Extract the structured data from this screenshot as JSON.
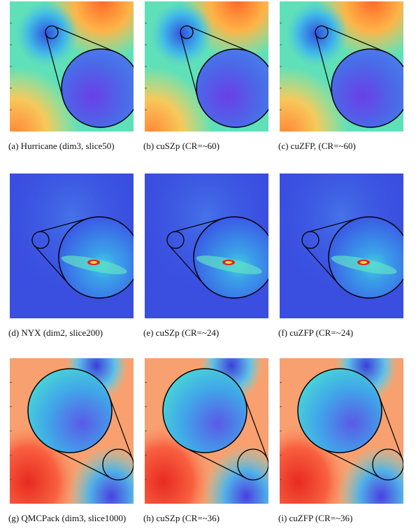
{
  "captions": [
    "(a) Hurricane (dim3, slice50)",
    "(b) cuSZp (CR=~60)",
    "(c) cuZFP, (CR=~60)",
    "(d) NYX (dim2, slice200)",
    "(e) cuSZp (CR=~24)",
    "(f) cuZFP (CR=~24)",
    "(g) QMCPack (dim3, slice1000)",
    "(h) cuSZp (CR=~36)",
    "(i) cuZFP (CR=~36)"
  ]
}
